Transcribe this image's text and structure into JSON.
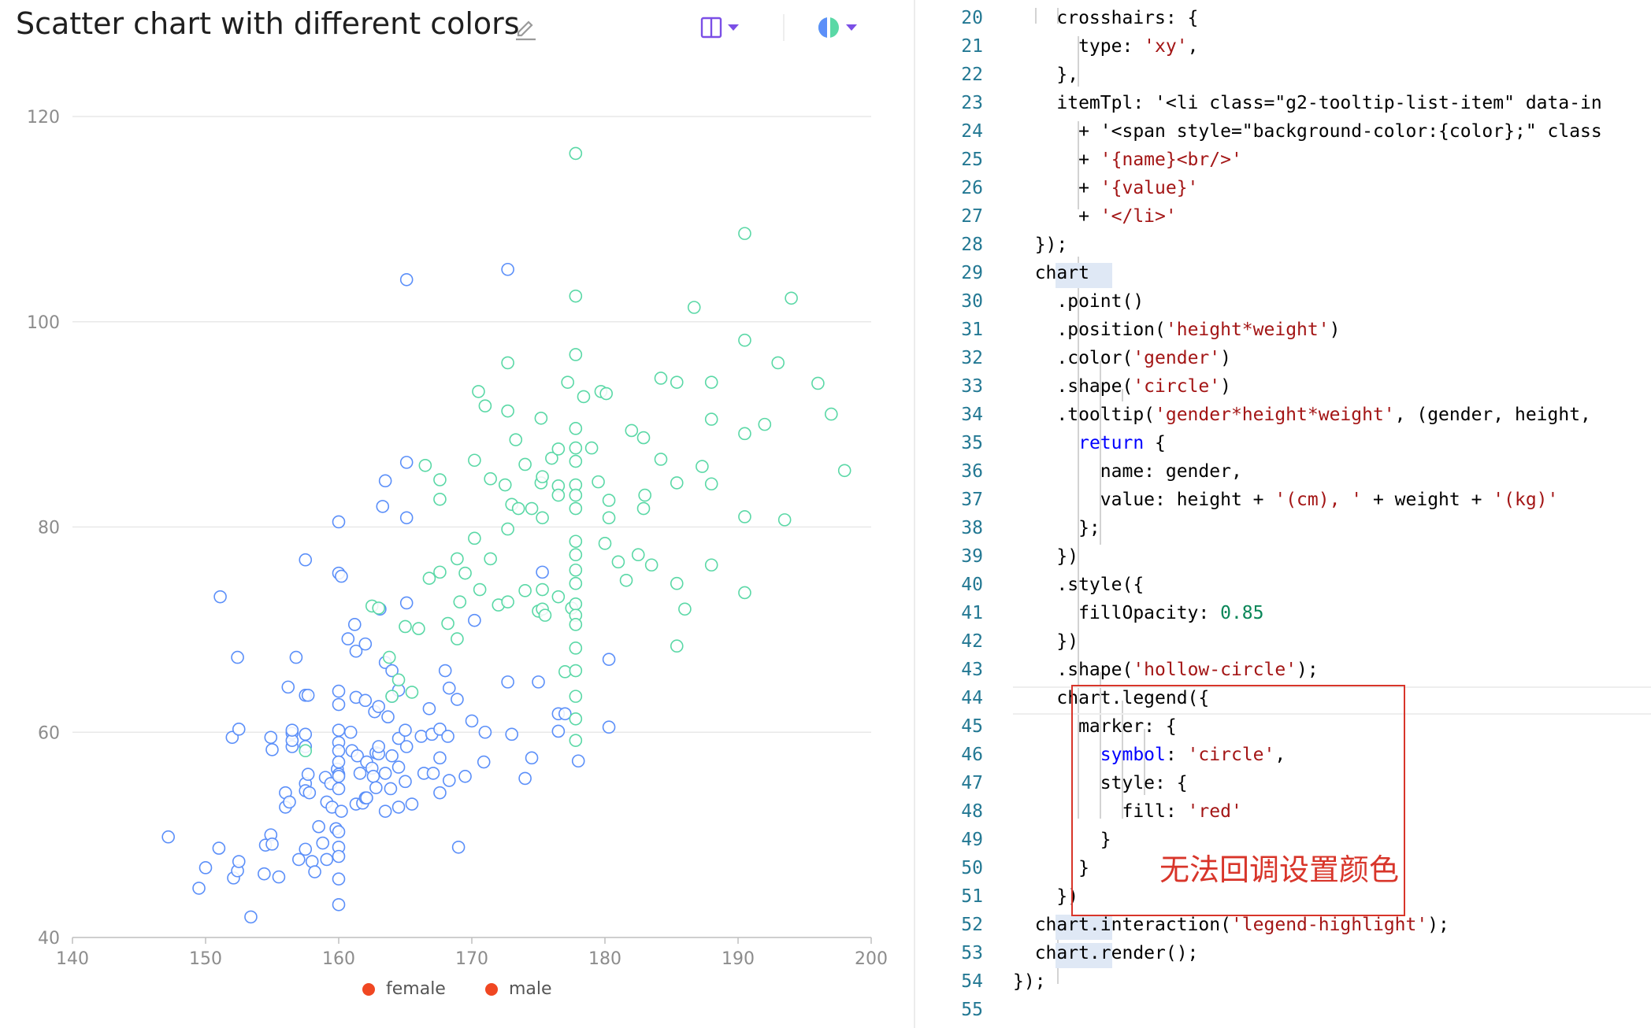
{
  "header": {
    "title": "Scatter chart with different colors",
    "layout_icon": "layout-columns-icon",
    "theme_icon": "theme-toggle-icon",
    "edit_icon": "pencil-icon",
    "accent": "#7b4fe6"
  },
  "chart_data": {
    "type": "scatter",
    "xlim": [
      140,
      200
    ],
    "ylim": [
      40,
      120
    ],
    "x_ticks": [
      "140",
      "150",
      "160",
      "170",
      "180",
      "190",
      "200"
    ],
    "y_ticks": [
      "40",
      "60",
      "80",
      "100",
      "120"
    ],
    "grid": true,
    "legend_position": "bottom",
    "series": [
      {
        "name": "female",
        "stroke": "#5b8ff9",
        "marker_fill": "#f04722",
        "points": [
          [
            147.2,
            49.8
          ],
          [
            149.5,
            44.8
          ],
          [
            150,
            46.8
          ],
          [
            151,
            48.7
          ],
          [
            151.1,
            73.2
          ],
          [
            152,
            59.5
          ],
          [
            152.1,
            45.8
          ],
          [
            152.4,
            46.5
          ],
          [
            152.5,
            47.4
          ],
          [
            152.4,
            67.3
          ],
          [
            152.5,
            60.3
          ],
          [
            153.4,
            42
          ],
          [
            154.4,
            46.2
          ],
          [
            154.5,
            49
          ],
          [
            154.9,
            59.5
          ],
          [
            154.9,
            50
          ],
          [
            155,
            58.3
          ],
          [
            155,
            49.1
          ],
          [
            155.5,
            45.9
          ],
          [
            156,
            52.7
          ],
          [
            156,
            54.1
          ],
          [
            156.2,
            64.4
          ],
          [
            156.3,
            53.2
          ],
          [
            156.5,
            59.9
          ],
          [
            156.5,
            58.6
          ],
          [
            156.5,
            59.2
          ],
          [
            156.5,
            60.2
          ],
          [
            156.8,
            67.3
          ],
          [
            157,
            47.6
          ],
          [
            157.5,
            63.6
          ],
          [
            157.5,
            55
          ],
          [
            157.5,
            59.8
          ],
          [
            157.5,
            54.3
          ],
          [
            157.5,
            76.8
          ],
          [
            157.5,
            48.6
          ],
          [
            157.5,
            58.6
          ],
          [
            157.7,
            55.9
          ],
          [
            157.7,
            63.6
          ],
          [
            157.8,
            54.1
          ],
          [
            158,
            47.4
          ],
          [
            158.2,
            46.4
          ],
          [
            158.5,
            50.8
          ],
          [
            158.8,
            49.2
          ],
          [
            159,
            55.6
          ],
          [
            159.1,
            53.2
          ],
          [
            159.1,
            47.6
          ],
          [
            159.4,
            55
          ],
          [
            159.5,
            52.7
          ],
          [
            159.8,
            50.6
          ],
          [
            159.9,
            56.4
          ],
          [
            160,
            48.8
          ],
          [
            160,
            59
          ],
          [
            160,
            80.5
          ],
          [
            160,
            75.5
          ],
          [
            160,
            64
          ],
          [
            160,
            58.2
          ],
          [
            160,
            62.7
          ],
          [
            160,
            55.9
          ],
          [
            160,
            57.1
          ],
          [
            160,
            55.7
          ],
          [
            160,
            60.2
          ],
          [
            160,
            54.5
          ],
          [
            160,
            50.3
          ],
          [
            160,
            43.2
          ],
          [
            160,
            45.7
          ],
          [
            160,
            47.9
          ],
          [
            160.2,
            52.3
          ],
          [
            160.2,
            75.2
          ],
          [
            160.7,
            69.1
          ],
          [
            160.9,
            60
          ],
          [
            161,
            58.2
          ],
          [
            161.2,
            70.5
          ],
          [
            161.3,
            67.9
          ],
          [
            161.3,
            63.4
          ],
          [
            161.3,
            53
          ],
          [
            161.4,
            57.7
          ],
          [
            161.6,
            56
          ],
          [
            161.8,
            53.1
          ],
          [
            162,
            63.1
          ],
          [
            162,
            53.6
          ],
          [
            162,
            68.6
          ],
          [
            162.1,
            53.6
          ],
          [
            162.1,
            57.1
          ],
          [
            162.5,
            56.5
          ],
          [
            162.6,
            55.7
          ],
          [
            162.7,
            62
          ],
          [
            162.8,
            58
          ],
          [
            162.8,
            54.6
          ],
          [
            163,
            57.9
          ],
          [
            163,
            58.6
          ],
          [
            163,
            62.5
          ],
          [
            163.1,
            72
          ],
          [
            163.3,
            82
          ],
          [
            163.5,
            56
          ],
          [
            163.5,
            52.3
          ],
          [
            163.5,
            84.5
          ],
          [
            163.5,
            66.8
          ],
          [
            163.7,
            61.5
          ],
          [
            163.9,
            54.5
          ],
          [
            164,
            66
          ],
          [
            164,
            63.5
          ],
          [
            164,
            57.7
          ],
          [
            164.5,
            64.1
          ],
          [
            164.5,
            59.4
          ],
          [
            164.5,
            56.6
          ],
          [
            164.5,
            52.7
          ],
          [
            165,
            60.2
          ],
          [
            165,
            55.2
          ],
          [
            165.1,
            104.1
          ],
          [
            165.1,
            58.6
          ],
          [
            165.1,
            86.3
          ],
          [
            165.1,
            80.9
          ],
          [
            165.1,
            72.6
          ],
          [
            165.5,
            53
          ],
          [
            166.2,
            59.6
          ],
          [
            166.4,
            56
          ],
          [
            166.8,
            62.3
          ],
          [
            167,
            59.8
          ],
          [
            167.1,
            56
          ],
          [
            167.6,
            60.3
          ],
          [
            167.6,
            57.5
          ],
          [
            167.6,
            54.1
          ],
          [
            168,
            66
          ],
          [
            168.2,
            59.6
          ],
          [
            168.3,
            55.3
          ],
          [
            168.3,
            64.3
          ],
          [
            168.9,
            63.2
          ],
          [
            169,
            48.8
          ],
          [
            169.5,
            55.7
          ],
          [
            170,
            61.1
          ],
          [
            170.2,
            70.9
          ],
          [
            170.9,
            57.1
          ],
          [
            171,
            60
          ],
          [
            172.7,
            105.1
          ],
          [
            172.7,
            64.9
          ],
          [
            173,
            59.8
          ],
          [
            174,
            55.5
          ],
          [
            174.5,
            57.5
          ],
          [
            175,
            64.9
          ],
          [
            175.3,
            75.6
          ],
          [
            176.5,
            61.8
          ],
          [
            176.5,
            60.1
          ],
          [
            177,
            61.8
          ],
          [
            178,
            57.2
          ],
          [
            180.3,
            67.1
          ],
          [
            180.3,
            60.5
          ]
        ]
      },
      {
        "name": "male",
        "stroke": "#5ad8a6",
        "marker_fill": "#f04722",
        "points": [
          [
            157.5,
            58.2
          ],
          [
            162.5,
            72.3
          ],
          [
            163,
            72.1
          ],
          [
            163.8,
            67.3
          ],
          [
            164,
            63.5
          ],
          [
            164.5,
            65.1
          ],
          [
            165,
            70.3
          ],
          [
            165.5,
            63.9
          ],
          [
            166,
            70.1
          ],
          [
            166.5,
            86
          ],
          [
            166.8,
            75
          ],
          [
            167.6,
            84.6
          ],
          [
            167.6,
            82.7
          ],
          [
            167.6,
            75.6
          ],
          [
            168.2,
            70.6
          ],
          [
            168.9,
            69.1
          ],
          [
            168.9,
            76.9
          ],
          [
            169.1,
            72.7
          ],
          [
            169.5,
            75.5
          ],
          [
            170.2,
            86.5
          ],
          [
            170.2,
            78.9
          ],
          [
            170.5,
            93.2
          ],
          [
            170.6,
            73.9
          ],
          [
            171,
            91.8
          ],
          [
            171.4,
            84.7
          ],
          [
            171.4,
            76.9
          ],
          [
            172,
            72.4
          ],
          [
            172.5,
            84.1
          ],
          [
            172.7,
            96
          ],
          [
            172.7,
            91.3
          ],
          [
            172.7,
            79.8
          ],
          [
            172.7,
            72.7
          ],
          [
            173,
            82.2
          ],
          [
            173.3,
            88.5
          ],
          [
            173.5,
            81.8
          ],
          [
            174,
            73.8
          ],
          [
            174,
            86.1
          ],
          [
            174.5,
            81.8
          ],
          [
            175,
            71.8
          ],
          [
            175.2,
            90.6
          ],
          [
            175.2,
            84.3
          ],
          [
            175.3,
            84.9
          ],
          [
            175.3,
            80.9
          ],
          [
            175.3,
            73.9
          ],
          [
            175.3,
            72
          ],
          [
            175.5,
            71.4
          ],
          [
            176,
            86.7
          ],
          [
            176.5,
            73.2
          ],
          [
            176.5,
            84
          ],
          [
            176.5,
            87.6
          ],
          [
            176.5,
            83.1
          ],
          [
            177,
            65.9
          ],
          [
            177.2,
            94.1
          ],
          [
            177.5,
            72.1
          ],
          [
            177.8,
            116.4
          ],
          [
            177.8,
            102.5
          ],
          [
            177.8,
            96.8
          ],
          [
            177.8,
            89.6
          ],
          [
            177.8,
            87.7
          ],
          [
            177.8,
            86.4
          ],
          [
            177.8,
            84.1
          ],
          [
            177.8,
            83.1
          ],
          [
            177.8,
            81.8
          ],
          [
            177.8,
            78.6
          ],
          [
            177.8,
            77.3
          ],
          [
            177.8,
            75.8
          ],
          [
            177.8,
            74.5
          ],
          [
            177.8,
            72.5
          ],
          [
            177.8,
            71.4
          ],
          [
            177.8,
            70.5
          ],
          [
            177.8,
            68.2
          ],
          [
            177.8,
            66
          ],
          [
            177.8,
            63.5
          ],
          [
            177.8,
            61.3
          ],
          [
            177.8,
            59.2
          ],
          [
            178.4,
            92.7
          ],
          [
            179,
            87.7
          ],
          [
            179.5,
            84.4
          ],
          [
            179.7,
            93.2
          ],
          [
            180,
            78.4
          ],
          [
            180.1,
            93
          ],
          [
            180.3,
            82.6
          ],
          [
            180.3,
            80.9
          ],
          [
            181,
            76.6
          ],
          [
            181.6,
            74.8
          ],
          [
            182,
            89.4
          ],
          [
            182.5,
            77.3
          ],
          [
            182.9,
            88.7
          ],
          [
            182.9,
            81.8
          ],
          [
            183,
            83.1
          ],
          [
            183.5,
            76.3
          ],
          [
            184.2,
            94.5
          ],
          [
            184.2,
            86.6
          ],
          [
            185.4,
            94.1
          ],
          [
            185.4,
            84.3
          ],
          [
            185.4,
            68.4
          ],
          [
            185.4,
            74.5
          ],
          [
            186,
            72
          ],
          [
            186.7,
            101.4
          ],
          [
            187.3,
            85.9
          ],
          [
            188,
            94.1
          ],
          [
            188,
            84.2
          ],
          [
            188,
            90.5
          ],
          [
            188,
            76.3
          ],
          [
            190.5,
            108.6
          ],
          [
            190.5,
            98.2
          ],
          [
            190.5,
            89.1
          ],
          [
            190.5,
            81
          ],
          [
            190.5,
            73.6
          ],
          [
            192,
            90
          ],
          [
            193,
            96
          ],
          [
            193.5,
            80.7
          ],
          [
            194,
            102.3
          ],
          [
            196,
            94
          ],
          [
            197,
            91
          ],
          [
            198,
            85.5
          ]
        ]
      }
    ]
  },
  "legend": [
    {
      "label": "female"
    },
    {
      "label": "male"
    }
  ],
  "editor": {
    "line_numbers": [
      "20",
      "21",
      "22",
      "23",
      "24",
      "25",
      "26",
      "27",
      "28",
      "29",
      "30",
      "31",
      "32",
      "33",
      "34",
      "35",
      "36",
      "37",
      "38",
      "39",
      "40",
      "41",
      "42",
      "43",
      "44",
      "45",
      "46",
      "47",
      "48",
      "49",
      "50",
      "51",
      "52",
      "53",
      "54",
      "55"
    ],
    "lines": [
      "    crosshairs: {",
      "      type: 'xy',",
      "    },",
      "    itemTpl: '<li class=\"g2-tooltip-list-item\" data-in",
      "      + '<span style=\"background-color:{color};\" class",
      "      + '{name}<br/>'",
      "      + '{value}'",
      "      + '</li>'",
      "  });",
      "  chart",
      "    .point()",
      "    .position('height*weight')",
      "    .color('gender')",
      "    .shape('circle')",
      "    .tooltip('gender*height*weight', (gender, height,",
      "      return {",
      "        name: gender,",
      "        value: height + '(cm), ' + weight + '(kg)'",
      "      };",
      "    })",
      "    .style({",
      "      fillOpacity: 0.85",
      "    })",
      "    .shape('hollow-circle');",
      "    chart.legend({",
      "      marker: {",
      "        symbol: 'circle',",
      "        style: {",
      "          fill: 'red'",
      "        }",
      "      }",
      "    })",
      "  chart.interaction('legend-highlight');",
      "  chart.render();",
      "});",
      ""
    ],
    "annotation": "无法回调设置颜色",
    "annotation_color": "#d8352a"
  }
}
